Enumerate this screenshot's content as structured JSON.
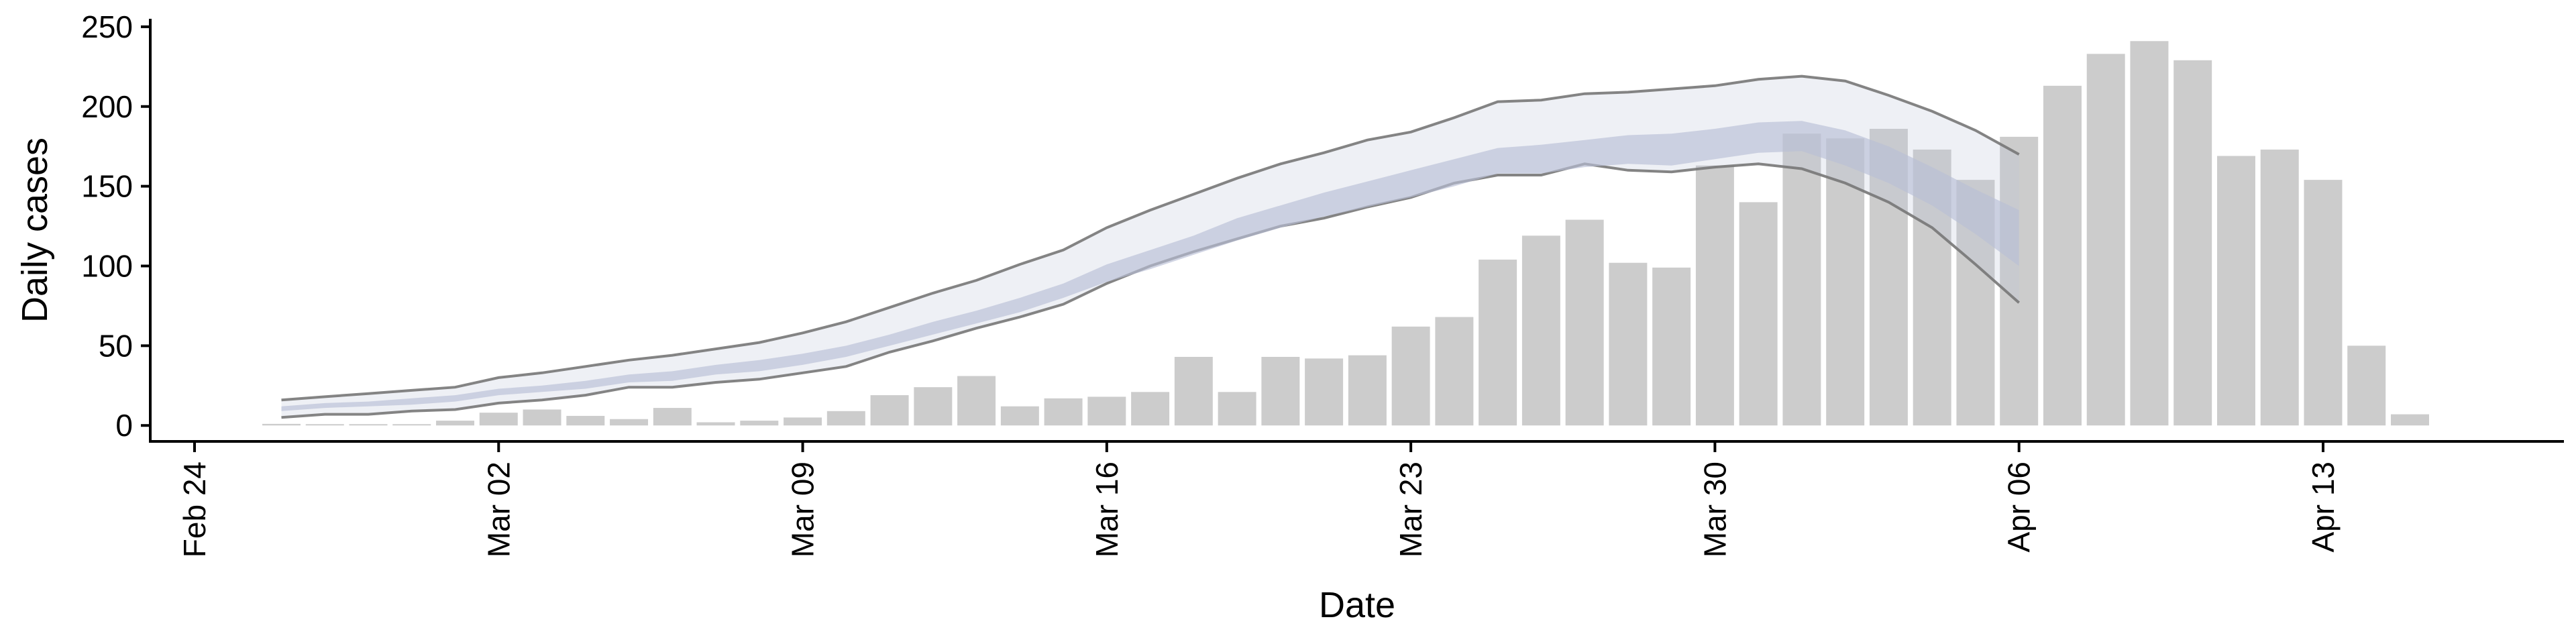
{
  "chart_data": {
    "type": "bar",
    "title": "",
    "xlabel": "Date",
    "ylabel": "Daily cases",
    "ylim": [
      -10,
      255
    ],
    "yticks": [
      0,
      50,
      100,
      150,
      200,
      250
    ],
    "xlim": [
      "2020-02-24",
      "2020-04-17"
    ],
    "xticks": [
      {
        "date": "2020-02-24",
        "label": "Feb 24"
      },
      {
        "date": "2020-03-02",
        "label": "Mar 02"
      },
      {
        "date": "2020-03-09",
        "label": "Mar 09"
      },
      {
        "date": "2020-03-16",
        "label": "Mar 16"
      },
      {
        "date": "2020-03-23",
        "label": "Mar 23"
      },
      {
        "date": "2020-03-30",
        "label": "Mar 30"
      },
      {
        "date": "2020-04-06",
        "label": "Apr 06"
      },
      {
        "date": "2020-04-13",
        "label": "Apr 13"
      }
    ],
    "grid": false,
    "legend": "none",
    "bars": {
      "color": "#cccccc",
      "dates": [
        "2020-02-26",
        "2020-02-27",
        "2020-02-28",
        "2020-02-29",
        "2020-03-01",
        "2020-03-02",
        "2020-03-03",
        "2020-03-04",
        "2020-03-05",
        "2020-03-06",
        "2020-03-07",
        "2020-03-08",
        "2020-03-09",
        "2020-03-10",
        "2020-03-11",
        "2020-03-12",
        "2020-03-13",
        "2020-03-14",
        "2020-03-15",
        "2020-03-16",
        "2020-03-17",
        "2020-03-18",
        "2020-03-19",
        "2020-03-20",
        "2020-03-21",
        "2020-03-22",
        "2020-03-23",
        "2020-03-24",
        "2020-03-25",
        "2020-03-26",
        "2020-03-27",
        "2020-03-28",
        "2020-03-29",
        "2020-03-30",
        "2020-03-31",
        "2020-04-01",
        "2020-04-02",
        "2020-04-03",
        "2020-04-04",
        "2020-04-05",
        "2020-04-06",
        "2020-04-07",
        "2020-04-08",
        "2020-04-09",
        "2020-04-10",
        "2020-04-11",
        "2020-04-12",
        "2020-04-13",
        "2020-04-14",
        "2020-04-15"
      ],
      "values": [
        1,
        0,
        0,
        0,
        3,
        8,
        10,
        6,
        4,
        11,
        2,
        3,
        5,
        9,
        19,
        24,
        31,
        12,
        17,
        18,
        21,
        43,
        21,
        43,
        42,
        44,
        62,
        68,
        104,
        119,
        129,
        102,
        99,
        163,
        140,
        183,
        180,
        186,
        173,
        154,
        181,
        213,
        233,
        241,
        229,
        169,
        173,
        154,
        50,
        7
      ]
    },
    "series": [
      {
        "type": "band",
        "fill": "#bcc3d8",
        "opacity": 0.25,
        "upper_line": "#777777",
        "lower_line": "#777777",
        "dates": [
          "2020-02-26",
          "2020-02-27",
          "2020-02-28",
          "2020-02-29",
          "2020-03-01",
          "2020-03-02",
          "2020-03-03",
          "2020-03-04",
          "2020-03-05",
          "2020-03-06",
          "2020-03-07",
          "2020-03-08",
          "2020-03-09",
          "2020-03-10",
          "2020-03-11",
          "2020-03-12",
          "2020-03-13",
          "2020-03-14",
          "2020-03-15",
          "2020-03-16",
          "2020-03-17",
          "2020-03-18",
          "2020-03-19",
          "2020-03-20",
          "2020-03-21",
          "2020-03-22",
          "2020-03-23",
          "2020-03-24",
          "2020-03-25",
          "2020-03-26",
          "2020-03-27",
          "2020-03-28",
          "2020-03-29",
          "2020-03-30",
          "2020-03-31",
          "2020-04-01",
          "2020-04-02",
          "2020-04-03",
          "2020-04-04",
          "2020-04-05",
          "2020-04-06"
        ],
        "upper": [
          16,
          18,
          20,
          22,
          24,
          30,
          33,
          37,
          41,
          44,
          48,
          52,
          58,
          65,
          74,
          83,
          91,
          101,
          110,
          124,
          135,
          145,
          155,
          164,
          171,
          179,
          184,
          193,
          203,
          204,
          208,
          209,
          211,
          213,
          217,
          219,
          216,
          207,
          197,
          185,
          170
        ],
        "lower": [
          5,
          7,
          7,
          9,
          10,
          14,
          16,
          19,
          24,
          24,
          27,
          29,
          33,
          37,
          46,
          53,
          61,
          68,
          76,
          89,
          100,
          109,
          117,
          125,
          130,
          137,
          143,
          152,
          157,
          157,
          164,
          160,
          159,
          162,
          164,
          161,
          152,
          140,
          124,
          101,
          77
        ]
      },
      {
        "type": "band",
        "fill": "#b8bfd6",
        "opacity": 0.65,
        "dates": [
          "2020-02-26",
          "2020-02-27",
          "2020-02-28",
          "2020-02-29",
          "2020-03-01",
          "2020-03-02",
          "2020-03-03",
          "2020-03-04",
          "2020-03-05",
          "2020-03-06",
          "2020-03-07",
          "2020-03-08",
          "2020-03-09",
          "2020-03-10",
          "2020-03-11",
          "2020-03-12",
          "2020-03-13",
          "2020-03-14",
          "2020-03-15",
          "2020-03-16",
          "2020-03-17",
          "2020-03-18",
          "2020-03-19",
          "2020-03-20",
          "2020-03-21",
          "2020-03-22",
          "2020-03-23",
          "2020-03-24",
          "2020-03-25",
          "2020-03-26",
          "2020-03-27",
          "2020-03-28",
          "2020-03-29",
          "2020-03-30",
          "2020-03-31",
          "2020-04-01",
          "2020-04-02",
          "2020-04-03",
          "2020-04-04",
          "2020-04-05",
          "2020-04-06"
        ],
        "upper": [
          12,
          14,
          15,
          17,
          19,
          23,
          25,
          28,
          32,
          34,
          38,
          41,
          45,
          50,
          57,
          65,
          72,
          80,
          89,
          101,
          110,
          119,
          130,
          138,
          146,
          153,
          160,
          167,
          174,
          176,
          179,
          182,
          183,
          186,
          190,
          191,
          185,
          175,
          162,
          148,
          135
        ],
        "lower": [
          9,
          11,
          12,
          13,
          15,
          19,
          21,
          23,
          27,
          28,
          32,
          34,
          38,
          43,
          50,
          57,
          64,
          71,
          80,
          90,
          98,
          107,
          116,
          124,
          131,
          137,
          143,
          150,
          158,
          158,
          162,
          164,
          163,
          167,
          171,
          172,
          163,
          152,
          138,
          120,
          100
        ]
      }
    ]
  }
}
